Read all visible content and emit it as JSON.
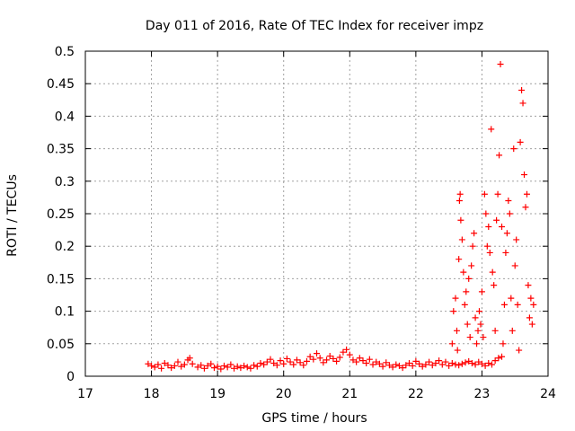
{
  "chart_data": {
    "type": "scatter",
    "title": "Day 011 of 2016, Rate Of TEC Index for receiver impz",
    "xlabel": "GPS time / hours",
    "ylabel": "ROTI / TECUs",
    "xlim": [
      17,
      24
    ],
    "ylim": [
      0,
      0.5
    ],
    "xticks": [
      17,
      18,
      19,
      20,
      21,
      22,
      23,
      24
    ],
    "xtick_labels": [
      "17",
      "18",
      "19",
      "20",
      "21",
      "22",
      "23",
      "24"
    ],
    "yticks": [
      0,
      0.05,
      0.1,
      0.15,
      0.2,
      0.25,
      0.3,
      0.35,
      0.4,
      0.45,
      0.5
    ],
    "ytick_labels": [
      "0",
      "0.05",
      "0.1",
      "0.15",
      "0.2",
      "0.25",
      "0.3",
      "0.35",
      "0.4",
      "0.45",
      "0.5"
    ],
    "grid": true,
    "marker": "+",
    "series_color": "#ff0000",
    "series": [
      {
        "name": "ROTI",
        "points": [
          [
            17.95,
            0.019
          ],
          [
            18.0,
            0.016
          ],
          [
            18.05,
            0.014
          ],
          [
            18.1,
            0.018
          ],
          [
            18.15,
            0.012
          ],
          [
            18.2,
            0.02
          ],
          [
            18.25,
            0.017
          ],
          [
            18.3,
            0.013
          ],
          [
            18.35,
            0.016
          ],
          [
            18.4,
            0.022
          ],
          [
            18.45,
            0.015
          ],
          [
            18.5,
            0.018
          ],
          [
            18.55,
            0.025
          ],
          [
            18.58,
            0.028
          ],
          [
            18.62,
            0.019
          ],
          [
            18.7,
            0.014
          ],
          [
            18.75,
            0.017
          ],
          [
            18.8,
            0.012
          ],
          [
            18.85,
            0.016
          ],
          [
            18.9,
            0.019
          ],
          [
            18.95,
            0.013
          ],
          [
            19.0,
            0.015
          ],
          [
            19.05,
            0.011
          ],
          [
            19.1,
            0.016
          ],
          [
            19.15,
            0.014
          ],
          [
            19.2,
            0.018
          ],
          [
            19.25,
            0.012
          ],
          [
            19.3,
            0.015
          ],
          [
            19.35,
            0.013
          ],
          [
            19.4,
            0.016
          ],
          [
            19.45,
            0.014
          ],
          [
            19.5,
            0.012
          ],
          [
            19.55,
            0.017
          ],
          [
            19.6,
            0.015
          ],
          [
            19.65,
            0.02
          ],
          [
            19.7,
            0.018
          ],
          [
            19.75,
            0.022
          ],
          [
            19.8,
            0.026
          ],
          [
            19.85,
            0.02
          ],
          [
            19.9,
            0.017
          ],
          [
            19.95,
            0.024
          ],
          [
            20.0,
            0.019
          ],
          [
            20.05,
            0.027
          ],
          [
            20.1,
            0.022
          ],
          [
            20.15,
            0.018
          ],
          [
            20.2,
            0.025
          ],
          [
            20.25,
            0.021
          ],
          [
            20.3,
            0.017
          ],
          [
            20.35,
            0.023
          ],
          [
            20.4,
            0.03
          ],
          [
            20.45,
            0.026
          ],
          [
            20.5,
            0.035
          ],
          [
            20.55,
            0.028
          ],
          [
            20.6,
            0.021
          ],
          [
            20.65,
            0.025
          ],
          [
            20.7,
            0.031
          ],
          [
            20.75,
            0.027
          ],
          [
            20.8,
            0.023
          ],
          [
            20.85,
            0.029
          ],
          [
            20.9,
            0.037
          ],
          [
            20.95,
            0.041
          ],
          [
            21.0,
            0.033
          ],
          [
            21.05,
            0.025
          ],
          [
            21.1,
            0.022
          ],
          [
            21.15,
            0.028
          ],
          [
            21.2,
            0.024
          ],
          [
            21.25,
            0.02
          ],
          [
            21.3,
            0.026
          ],
          [
            21.35,
            0.018
          ],
          [
            21.4,
            0.022
          ],
          [
            21.45,
            0.019
          ],
          [
            21.5,
            0.015
          ],
          [
            21.55,
            0.021
          ],
          [
            21.6,
            0.017
          ],
          [
            21.65,
            0.014
          ],
          [
            21.7,
            0.018
          ],
          [
            21.75,
            0.016
          ],
          [
            21.8,
            0.013
          ],
          [
            21.85,
            0.017
          ],
          [
            21.9,
            0.02
          ],
          [
            21.95,
            0.016
          ],
          [
            22.0,
            0.023
          ],
          [
            22.05,
            0.019
          ],
          [
            22.1,
            0.015
          ],
          [
            22.15,
            0.018
          ],
          [
            22.2,
            0.022
          ],
          [
            22.25,
            0.017
          ],
          [
            22.3,
            0.02
          ],
          [
            22.35,
            0.024
          ],
          [
            22.4,
            0.018
          ],
          [
            22.45,
            0.022
          ],
          [
            22.5,
            0.016
          ],
          [
            22.55,
            0.02
          ],
          [
            22.6,
            0.018
          ],
          [
            22.65,
            0.017
          ],
          [
            22.7,
            0.019
          ],
          [
            22.75,
            0.021
          ],
          [
            22.8,
            0.023
          ],
          [
            22.85,
            0.02
          ],
          [
            22.9,
            0.018
          ],
          [
            22.95,
            0.022
          ],
          [
            23.0,
            0.019
          ],
          [
            23.05,
            0.016
          ],
          [
            23.1,
            0.02
          ],
          [
            23.15,
            0.018
          ],
          [
            23.2,
            0.024
          ],
          [
            23.25,
            0.028
          ],
          [
            23.3,
            0.03
          ],
          [
            22.55,
            0.05
          ],
          [
            22.57,
            0.1
          ],
          [
            22.6,
            0.12
          ],
          [
            22.62,
            0.07
          ],
          [
            22.63,
            0.04
          ],
          [
            22.65,
            0.18
          ],
          [
            22.66,
            0.27
          ],
          [
            22.67,
            0.28
          ],
          [
            22.68,
            0.24
          ],
          [
            22.7,
            0.21
          ],
          [
            22.72,
            0.16
          ],
          [
            22.74,
            0.11
          ],
          [
            22.76,
            0.13
          ],
          [
            22.78,
            0.08
          ],
          [
            22.8,
            0.15
          ],
          [
            22.82,
            0.06
          ],
          [
            22.84,
            0.17
          ],
          [
            22.86,
            0.2
          ],
          [
            22.88,
            0.22
          ],
          [
            22.9,
            0.09
          ],
          [
            22.92,
            0.05
          ],
          [
            22.94,
            0.07
          ],
          [
            22.96,
            0.1
          ],
          [
            22.98,
            0.08
          ],
          [
            23.0,
            0.13
          ],
          [
            23.02,
            0.06
          ],
          [
            23.04,
            0.28
          ],
          [
            23.06,
            0.25
          ],
          [
            23.08,
            0.2
          ],
          [
            23.1,
            0.23
          ],
          [
            23.12,
            0.19
          ],
          [
            23.14,
            0.38
          ],
          [
            23.16,
            0.16
          ],
          [
            23.18,
            0.14
          ],
          [
            23.2,
            0.07
          ],
          [
            23.22,
            0.24
          ],
          [
            23.24,
            0.28
          ],
          [
            23.26,
            0.34
          ],
          [
            23.28,
            0.48
          ],
          [
            23.3,
            0.23
          ],
          [
            23.32,
            0.05
          ],
          [
            23.34,
            0.11
          ],
          [
            23.36,
            0.19
          ],
          [
            23.38,
            0.22
          ],
          [
            23.4,
            0.27
          ],
          [
            23.42,
            0.25
          ],
          [
            23.44,
            0.12
          ],
          [
            23.46,
            0.07
          ],
          [
            23.48,
            0.35
          ],
          [
            23.5,
            0.17
          ],
          [
            23.52,
            0.21
          ],
          [
            23.54,
            0.11
          ],
          [
            23.56,
            0.04
          ],
          [
            23.58,
            0.36
          ],
          [
            23.6,
            0.44
          ],
          [
            23.62,
            0.42
          ],
          [
            23.64,
            0.31
          ],
          [
            23.66,
            0.26
          ],
          [
            23.68,
            0.28
          ],
          [
            23.7,
            0.14
          ],
          [
            23.72,
            0.09
          ],
          [
            23.74,
            0.12
          ],
          [
            23.76,
            0.08
          ],
          [
            23.78,
            0.11
          ]
        ]
      }
    ]
  }
}
